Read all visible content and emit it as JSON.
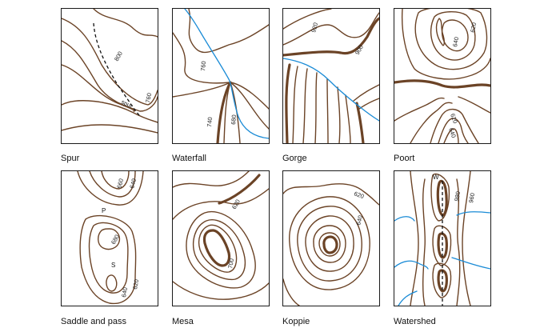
{
  "colors": {
    "contour": "#6b4326",
    "river": "#1a8bd6",
    "border": "#1a1a1a",
    "text": "#111111"
  },
  "panels": [
    {
      "caption": "Spur",
      "labels": [
        "800",
        "760",
        "spur"
      ]
    },
    {
      "caption": "Waterfall",
      "labels": [
        "760",
        "740",
        "680"
      ]
    },
    {
      "caption": "Gorge",
      "labels": [
        "920",
        "900"
      ]
    },
    {
      "caption": "Poort",
      "labels": [
        "620",
        "640",
        "620",
        "640"
      ]
    },
    {
      "caption": "Saddle and pass",
      "labels": [
        "660",
        "640",
        "680",
        "620",
        "640"
      ],
      "markers": [
        "P",
        "S"
      ]
    },
    {
      "caption": "Mesa",
      "labels": [
        "620",
        "700"
      ]
    },
    {
      "caption": "Koppie",
      "labels": [
        "620",
        "640"
      ]
    },
    {
      "caption": "Watershed",
      "labels": [
        "980",
        "960"
      ],
      "markers": [
        "W"
      ]
    }
  ]
}
